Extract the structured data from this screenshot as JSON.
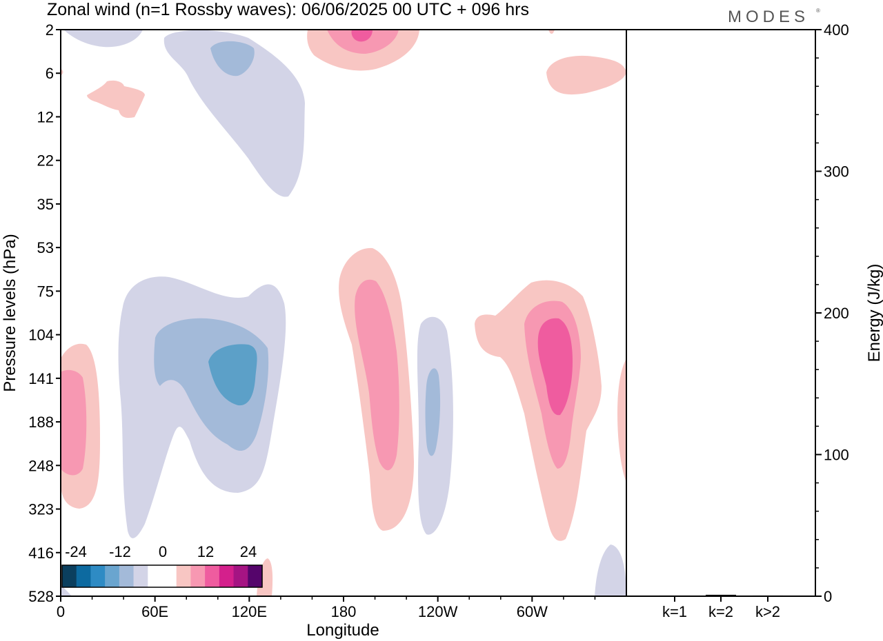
{
  "title": "Zonal wind (n=1 Rossby waves):  06/06/2025  00 UTC  + 096 hrs",
  "logo": "MODES",
  "colors": {
    "neg_1": "#d3d4e7",
    "neg_2": "#a3bad9",
    "neg_3": "#5ca0c8",
    "pos_1": "#f8c6c3",
    "pos_2": "#f798b2",
    "pos_3": "#ef5c9f",
    "frame": "#000000"
  },
  "chart_data": [
    {
      "type": "heatmap",
      "title": "Zonal wind (n=1 Rossby waves):  06/06/2025  00 UTC  + 096 hrs",
      "xlabel": "Longitude",
      "ylabel": "Pressure levels (hPa)",
      "x_ticks": [
        "0",
        "60E",
        "120E",
        "180",
        "120W",
        "60W"
      ],
      "x_tick_values": [
        0,
        60,
        120,
        180,
        240,
        300
      ],
      "xlim": [
        0,
        360
      ],
      "y_ticks": [
        "2",
        "6",
        "12",
        "22",
        "35",
        "53",
        "75",
        "104",
        "141",
        "188",
        "248",
        "323",
        "416",
        "528"
      ],
      "y_scale": "pressure levels (top to bottom)",
      "colorbar": {
        "labels": [
          "-24",
          "-12",
          "0",
          "12",
          "24"
        ],
        "colors": [
          "#0b3f5e",
          "#0d6aa0",
          "#2e8bc4",
          "#6aa5cf",
          "#a3bad9",
          "#d3d4e7",
          "#ffffff",
          "#ffffff",
          "#f8c6c3",
          "#f798b2",
          "#ef5c9f",
          "#d4208c",
          "#a51483",
          "#55056b"
        ]
      },
      "regions": [
        {
          "sign": "negative",
          "level": 1,
          "lon_center": 28,
          "level_center": "2"
        },
        {
          "sign": "negative",
          "level": 1,
          "lon_center": 125,
          "level_center": "12"
        },
        {
          "sign": "negative",
          "level": 2,
          "lon_center": 112,
          "level_center": "6"
        },
        {
          "sign": "negative",
          "level": 1,
          "lon_center": 110,
          "level_center": "141"
        },
        {
          "sign": "negative",
          "level": 2,
          "lon_center": 110,
          "level_center": "141"
        },
        {
          "sign": "negative",
          "level": 3,
          "lon_center": 113,
          "level_center": "141"
        },
        {
          "sign": "negative",
          "level": 1,
          "lon_center": 240,
          "level_center": "188"
        },
        {
          "sign": "negative",
          "level": 2,
          "lon_center": 237,
          "level_center": "188"
        },
        {
          "sign": "negative",
          "level": 1,
          "lon_center": 352,
          "level_center": "528"
        },
        {
          "sign": "positive",
          "level": 1,
          "lon_center": 190,
          "level_center": "2"
        },
        {
          "sign": "positive",
          "level": 2,
          "lon_center": 190,
          "level_center": "2"
        },
        {
          "sign": "positive",
          "level": 3,
          "lon_center": 190,
          "level_center": "2"
        },
        {
          "sign": "positive",
          "level": 1,
          "lon_center": 30,
          "level_center": "12"
        },
        {
          "sign": "positive",
          "level": 1,
          "lon_center": 350,
          "level_center": "6"
        },
        {
          "sign": "positive",
          "level": 1,
          "lon_center": 10,
          "level_center": "188"
        },
        {
          "sign": "positive",
          "level": 2,
          "lon_center": 7,
          "level_center": "188"
        },
        {
          "sign": "positive",
          "level": 1,
          "lon_center": 200,
          "level_center": "141"
        },
        {
          "sign": "positive",
          "level": 2,
          "lon_center": 199,
          "level_center": "141"
        },
        {
          "sign": "positive",
          "level": 1,
          "lon_center": 312,
          "level_center": "141"
        },
        {
          "sign": "positive",
          "level": 2,
          "lon_center": 312,
          "level_center": "141"
        },
        {
          "sign": "positive",
          "level": 3,
          "lon_center": 315,
          "level_center": "141"
        },
        {
          "sign": "positive",
          "level": 1,
          "lon_center": 358,
          "level_center": "188"
        },
        {
          "sign": "positive",
          "level": 1,
          "lon_center": 132,
          "level_center": "528"
        }
      ]
    },
    {
      "type": "bar",
      "ylabel": "Energy (J/kg)",
      "categories": [
        "k=1",
        "k=2",
        "k>2"
      ],
      "values": [
        0.5,
        1,
        0.5
      ],
      "ylim": [
        0,
        400
      ],
      "y_ticks": [
        "0",
        "100",
        "200",
        "300",
        "400"
      ],
      "y_tick_values": [
        0,
        100,
        200,
        300,
        400
      ]
    }
  ]
}
